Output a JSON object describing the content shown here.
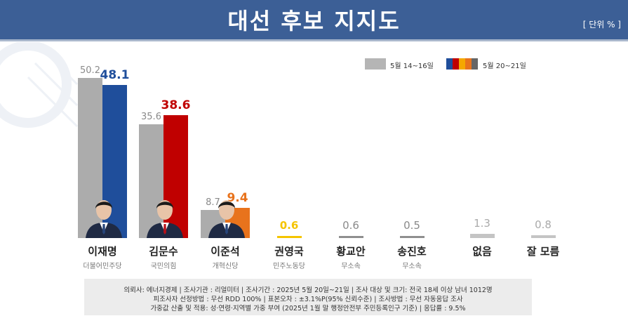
{
  "header": {
    "title": "대선 후보 지지도",
    "unit": "[ 단위 % ]"
  },
  "legend": {
    "old_label": "5월 14~16일",
    "new_label": "5월 20~21일",
    "new_swatch_colors": [
      "#1f4e9b",
      "#c00000",
      "#f5a800",
      "#e8731c",
      "#666666"
    ]
  },
  "colors": {
    "old_bar": "#acacac",
    "line_gray": "#8f8f8f",
    "yellow": "#f5c400"
  },
  "chart_data": {
    "type": "bar",
    "categories": [
      "이재명",
      "김문수",
      "이준석",
      "권영국",
      "황교안",
      "송진호",
      "없음",
      "잘 모름"
    ],
    "parties": [
      "더불어민주당",
      "국민의힘",
      "개혁신당",
      "민주노동당",
      "무소속",
      "무소속",
      "",
      ""
    ],
    "series": [
      {
        "name": "5월 14~16일",
        "values": [
          50.2,
          35.6,
          8.7,
          null,
          null,
          null,
          null,
          null
        ],
        "color": "#acacac"
      },
      {
        "name": "5월 20~21일",
        "values": [
          48.1,
          38.6,
          9.4,
          0.6,
          0.6,
          0.5,
          1.3,
          0.8
        ],
        "colors": [
          "#1f4e9b",
          "#c00000",
          "#e8731c",
          "#f5c400",
          "#8f8f8f",
          "#8f8f8f",
          "#c4c4c4",
          "#c4c4c4"
        ],
        "label_colors": [
          "#1f4e9b",
          "#c00000",
          "#e8731c",
          "#f5c400",
          "#8a8a8a",
          "#8a8a8a",
          "#aaaaaa",
          "#aaaaaa"
        ]
      }
    ],
    "labels": {
      "old": [
        "50.2",
        "35.6",
        "8.7",
        "",
        "",
        "",
        "",
        ""
      ],
      "new": [
        "48.1",
        "38.6",
        "9.4",
        "0.6",
        "0.6",
        "0.5",
        "1.3",
        "0.8"
      ]
    }
  },
  "footer": {
    "line1": "의뢰사: 에너지경제 | 조사기관 : 리얼미터 | 조사기간 : 2025년 5월 20일~21일 | 조사 대상 및 크기: 전국 18세 이상 남녀 1012명",
    "line2": "피조사자 선정방법 : 무선 RDD 100% | 표본오차 : ±3.1%P(95% 신뢰수준) | 조사방법 : 무선 자동응답 조사",
    "line3": "가중값 산출 및 적용: 성·연령·지역별 가중 부여 (2025년 1월 말 행정안전부 주민등록인구 기준) | 응답률 : 9.5%"
  }
}
